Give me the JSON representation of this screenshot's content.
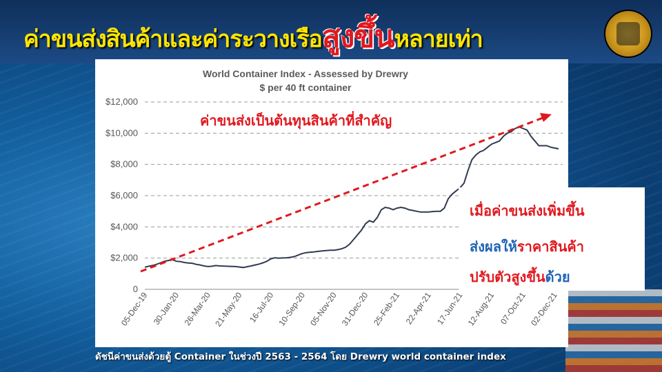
{
  "title": {
    "part1": "ค่าขนส่งสินค้าและค่าระวางเรือ",
    "part2": "สูงขึ้น",
    "part3": "หลายเท่า"
  },
  "note": {
    "line1": "เมื่อค่าขนส่งเพิ่มขึ้น",
    "line2_blue": "ส่งผลให้",
    "line2_red": "ราคาสินค้า",
    "line3_red": "ปรับตัวสูงขึ้น",
    "line3_blue": "ด้วย"
  },
  "caption": "ดัชนีค่าขนส่งด้วยตู้ Container ในช่วงปี 2563 - 2564 โดย Drewry world container index",
  "colors": {
    "title_yellow": "#ffe600",
    "accent_red": "#e0191f",
    "accent_blue": "#1f63b5",
    "line": "#2f3a4f"
  },
  "chart_data": {
    "type": "line",
    "title": "World Container Index - Assessed by Drewry",
    "subtitle": "$ per 40 ft container",
    "annotation": "ค่าขนส่งเป็นต้นทุนสินค้าที่สำคัญ",
    "ylim": [
      0,
      12000
    ],
    "grid": true,
    "yticks": [
      0,
      2000,
      4000,
      6000,
      8000,
      10000,
      12000
    ],
    "ytick_labels": [
      "0",
      "$2,000",
      "$4,000",
      "$6,000",
      "$8,000",
      "$10,000",
      "$12,000"
    ],
    "xtick_labels": [
      "05-Dec-19",
      "30-Jan-20",
      "26-Mar-20",
      "21-May-20",
      "16-Jul-20",
      "10-Sep-20",
      "05-Nov-20",
      "31-Dec-20",
      "25-Feb-21",
      "22-Apr-21",
      "17-Jun-21",
      "12-Aug-21",
      "07-Oct-21",
      "02-Dec-21"
    ],
    "series": [
      {
        "x": [
          "05-Dec-19",
          "12-Dec-19",
          "19-Dec-19",
          "26-Dec-19",
          "02-Jan-20",
          "09-Jan-20",
          "16-Jan-20",
          "23-Jan-20",
          "30-Jan-20",
          "06-Feb-20",
          "13-Feb-20",
          "20-Feb-20",
          "27-Feb-20",
          "05-Mar-20",
          "12-Mar-20",
          "19-Mar-20",
          "26-Mar-20",
          "02-Apr-20",
          "09-Apr-20",
          "16-Apr-20",
          "23-Apr-20",
          "30-Apr-20",
          "07-May-20",
          "14-May-20",
          "21-May-20",
          "28-May-20",
          "04-Jun-20",
          "11-Jun-20",
          "18-Jun-20",
          "25-Jun-20",
          "02-Jul-20",
          "09-Jul-20",
          "16-Jul-20",
          "23-Jul-20",
          "30-Jul-20",
          "06-Aug-20",
          "13-Aug-20",
          "20-Aug-20",
          "27-Aug-20",
          "03-Sep-20",
          "10-Sep-20",
          "17-Sep-20",
          "24-Sep-20",
          "01-Oct-20",
          "08-Oct-20",
          "15-Oct-20",
          "22-Oct-20",
          "29-Oct-20",
          "05-Nov-20",
          "12-Nov-20",
          "19-Nov-20",
          "26-Nov-20",
          "03-Dec-20",
          "10-Dec-20",
          "17-Dec-20",
          "24-Dec-20",
          "31-Dec-20",
          "07-Jan-21",
          "14-Jan-21",
          "21-Jan-21",
          "28-Jan-21",
          "04-Feb-21",
          "11-Feb-21",
          "18-Feb-21",
          "25-Feb-21",
          "04-Mar-21",
          "11-Mar-21",
          "18-Mar-21",
          "25-Mar-21",
          "01-Apr-21",
          "08-Apr-21",
          "15-Apr-21",
          "22-Apr-21",
          "29-Apr-21",
          "06-May-21",
          "13-May-21",
          "20-May-21",
          "27-May-21",
          "03-Jun-21",
          "10-Jun-21",
          "17-Jun-21",
          "24-Jun-21",
          "01-Jul-21",
          "08-Jul-21",
          "15-Jul-21",
          "22-Jul-21",
          "29-Jul-21",
          "05-Aug-21",
          "12-Aug-21",
          "19-Aug-21",
          "26-Aug-21",
          "02-Sep-21",
          "09-Sep-21",
          "16-Sep-21",
          "23-Sep-21",
          "30-Sep-21",
          "07-Oct-21",
          "14-Oct-21",
          "21-Oct-21",
          "28-Oct-21",
          "04-Nov-21",
          "11-Nov-21",
          "18-Nov-21",
          "25-Nov-21",
          "02-Dec-21",
          "09-Dec-21"
        ],
        "values": [
          1420,
          1480,
          1530,
          1600,
          1700,
          1800,
          1850,
          1900,
          1800,
          1780,
          1720,
          1690,
          1670,
          1600,
          1560,
          1500,
          1460,
          1480,
          1520,
          1500,
          1490,
          1480,
          1470,
          1460,
          1430,
          1400,
          1450,
          1500,
          1560,
          1620,
          1700,
          1800,
          1960,
          2020,
          2000,
          2010,
          2020,
          2050,
          2100,
          2200,
          2300,
          2350,
          2380,
          2400,
          2430,
          2460,
          2480,
          2500,
          2500,
          2540,
          2600,
          2700,
          2900,
          3200,
          3500,
          3800,
          4200,
          4400,
          4300,
          4600,
          5100,
          5250,
          5200,
          5100,
          5200,
          5250,
          5200,
          5100,
          5050,
          5000,
          4950,
          4950,
          4950,
          4980,
          5000,
          5000,
          5200,
          5800,
          6100,
          6300,
          6500,
          6800,
          7600,
          8300,
          8600,
          8800,
          8900,
          9100,
          9300,
          9400,
          9500,
          9800,
          10000,
          10100,
          10300,
          10400,
          10300,
          10200,
          9800,
          9500,
          9200,
          9200,
          9200,
          9100,
          9050,
          9000
        ]
      }
    ]
  }
}
